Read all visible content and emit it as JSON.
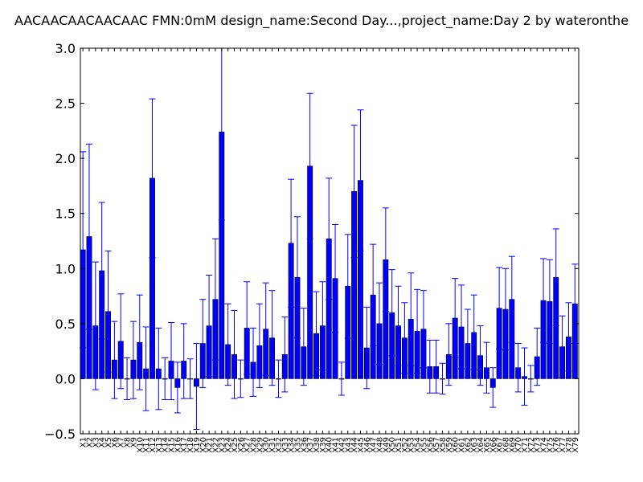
{
  "chart_data": {
    "type": "bar",
    "title": "AACAACAACAACAAC  FMN:0mM  design_name:Second Day...,project_name:Day 2 by wateronthe",
    "xlabel": "",
    "ylabel": "",
    "ylim": [
      -0.5,
      3.0
    ],
    "yticks": [
      -0.5,
      0.0,
      0.5,
      1.0,
      1.5,
      2.0,
      2.5,
      3.0
    ],
    "ytick_labels": [
      "−0.5",
      "0.0",
      "0.5",
      "1.0",
      "1.5",
      "2.0",
      "2.5",
      "3.0"
    ],
    "grid": false,
    "bar_color": "#0000ff",
    "error_color": "#0000ff",
    "categories": [
      "X1",
      "X2",
      "X3",
      "X4",
      "X5",
      "X6",
      "X7",
      "X8",
      "X9",
      "X10",
      "X11",
      "X12",
      "X13",
      "X14",
      "X15",
      "X16",
      "X17",
      "X18",
      "X19",
      "X20",
      "X21",
      "X22",
      "X23",
      "X24",
      "X25",
      "X26",
      "X27",
      "X28",
      "X29",
      "X30",
      "X31",
      "X32",
      "X33",
      "X34",
      "X35",
      "X36",
      "X37",
      "X38",
      "X39",
      "X40",
      "X41",
      "X42",
      "X43",
      "X44",
      "X45",
      "X46",
      "X47",
      "X48",
      "X49",
      "X50",
      "X51",
      "X52",
      "X53",
      "X54",
      "X55",
      "X56",
      "X57",
      "X58",
      "X59",
      "X60",
      "X61",
      "X62",
      "X63",
      "X64",
      "X65",
      "X66",
      "X67",
      "X68",
      "X69",
      "X70",
      "X71",
      "X72",
      "X73",
      "X74",
      "X75",
      "X76",
      "X77",
      "X78",
      "X79"
    ],
    "values": [
      1.17,
      1.29,
      0.48,
      0.98,
      0.61,
      0.17,
      0.34,
      0.0,
      0.17,
      0.33,
      0.09,
      1.82,
      0.09,
      0.0,
      0.16,
      -0.08,
      0.16,
      0.0,
      -0.07,
      0.32,
      0.48,
      0.72,
      2.24,
      0.31,
      0.22,
      0.0,
      0.46,
      0.15,
      0.3,
      0.45,
      0.37,
      0.0,
      0.22,
      1.23,
      0.92,
      0.29,
      1.93,
      0.41,
      0.48,
      1.27,
      0.91,
      0.0,
      0.84,
      1.7,
      1.8,
      0.28,
      0.76,
      0.5,
      1.08,
      0.6,
      0.48,
      0.37,
      0.54,
      0.43,
      0.45,
      0.11,
      0.11,
      0.0,
      0.22,
      0.55,
      0.47,
      0.32,
      0.42,
      0.21,
      0.1,
      -0.08,
      0.64,
      0.63,
      0.72,
      0.1,
      0.02,
      0.0,
      0.2,
      0.71,
      0.7,
      0.92,
      0.29,
      0.38,
      0.68
    ],
    "errors": [
      0.89,
      0.84,
      0.58,
      0.62,
      0.55,
      0.35,
      0.43,
      0.19,
      0.35,
      0.43,
      0.38,
      0.72,
      0.37,
      0.19,
      0.35,
      0.23,
      0.34,
      0.18,
      0.39,
      0.4,
      0.46,
      0.55,
      0.8,
      0.37,
      0.4,
      0.17,
      0.42,
      0.31,
      0.38,
      0.42,
      0.43,
      0.17,
      0.34,
      0.58,
      0.55,
      0.35,
      0.66,
      0.38,
      0.4,
      0.55,
      0.49,
      0.15,
      0.47,
      0.6,
      0.64,
      0.37,
      0.46,
      0.37,
      0.47,
      0.39,
      0.36,
      0.32,
      0.42,
      0.38,
      0.35,
      0.24,
      0.24,
      0.14,
      0.28,
      0.36,
      0.38,
      0.31,
      0.34,
      0.27,
      0.23,
      0.18,
      0.37,
      0.37,
      0.39,
      0.22,
      0.26,
      0.12,
      0.26,
      0.38,
      0.38,
      0.44,
      0.28,
      0.31,
      0.36
    ]
  }
}
